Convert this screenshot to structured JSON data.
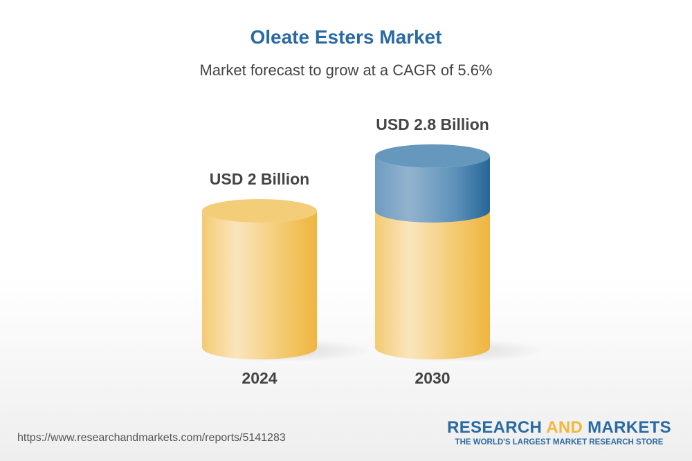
{
  "chart_data": {
    "type": "bar",
    "style": "3d-cylinder",
    "title": "Oleate Esters Market",
    "subtitle": "Market forecast to grow at a CAGR of 5.6%",
    "categories": [
      "2024",
      "2030"
    ],
    "values": [
      2,
      2.8
    ],
    "unit": "USD Billion",
    "data_labels": [
      "USD 2 Billion",
      "USD 2.8 Billion"
    ],
    "colors": {
      "base": "#f0b846",
      "growth": "#2a6aa3"
    },
    "grid": false
  },
  "footer": {
    "url": "https://www.researchandmarkets.com/reports/5141283",
    "logo": {
      "part1": "RESEARCH ",
      "part2": "AND",
      "part3": " MARKETS",
      "tagline": "THE WORLD'S LARGEST MARKET RESEARCH STORE"
    }
  }
}
